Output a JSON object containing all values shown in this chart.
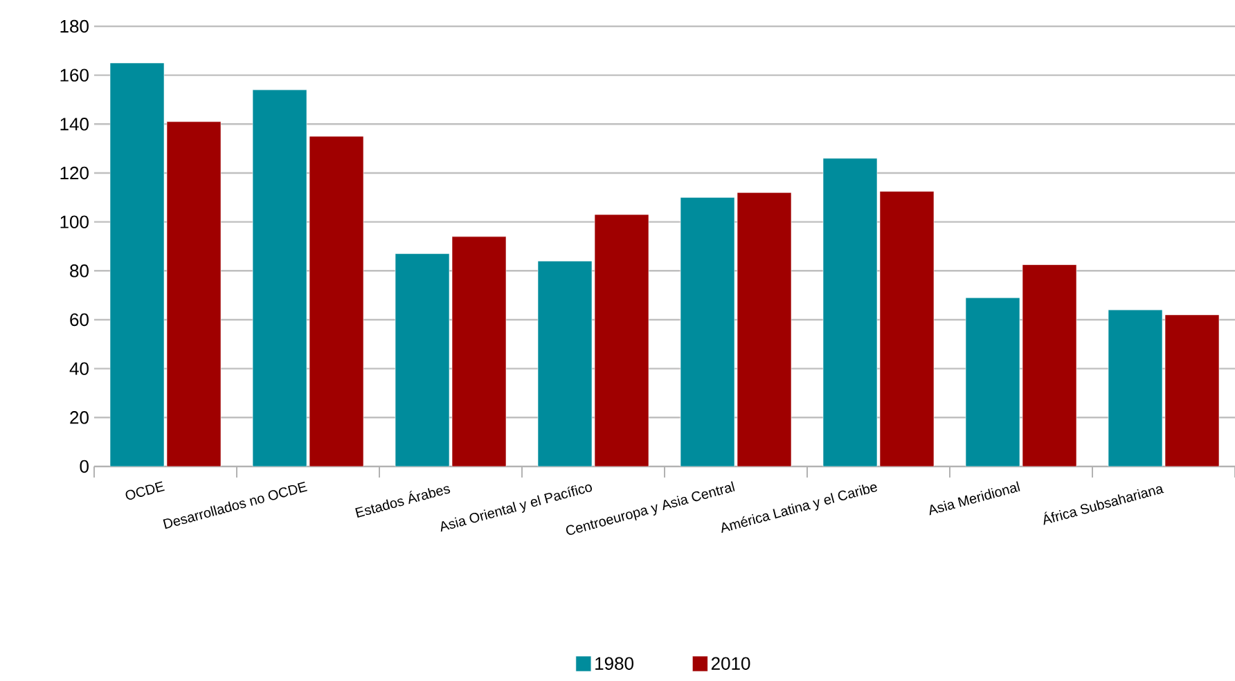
{
  "chart_data": {
    "type": "bar",
    "categories": [
      "OCDE",
      "Desarrollados no OCDE",
      "Estados Árabes",
      "Asia Oriental y el Pacífico",
      "Centroeuropa y Asia Central",
      "América Latina y el Caribe",
      "Asia Meridional",
      "África Subsahariana"
    ],
    "series": [
      {
        "name": "1980",
        "color": "#008c9c",
        "values": [
          165,
          154,
          87,
          84,
          110,
          126,
          69,
          64
        ]
      },
      {
        "name": "2010",
        "color": "#a00000",
        "values": [
          141,
          135,
          94,
          103,
          112,
          112.5,
          82.5,
          62
        ]
      }
    ],
    "ylim": [
      0,
      180
    ],
    "yticks": [
      0,
      20,
      40,
      60,
      80,
      100,
      120,
      140,
      160,
      180
    ],
    "grid": "y",
    "legend": "bottom"
  }
}
